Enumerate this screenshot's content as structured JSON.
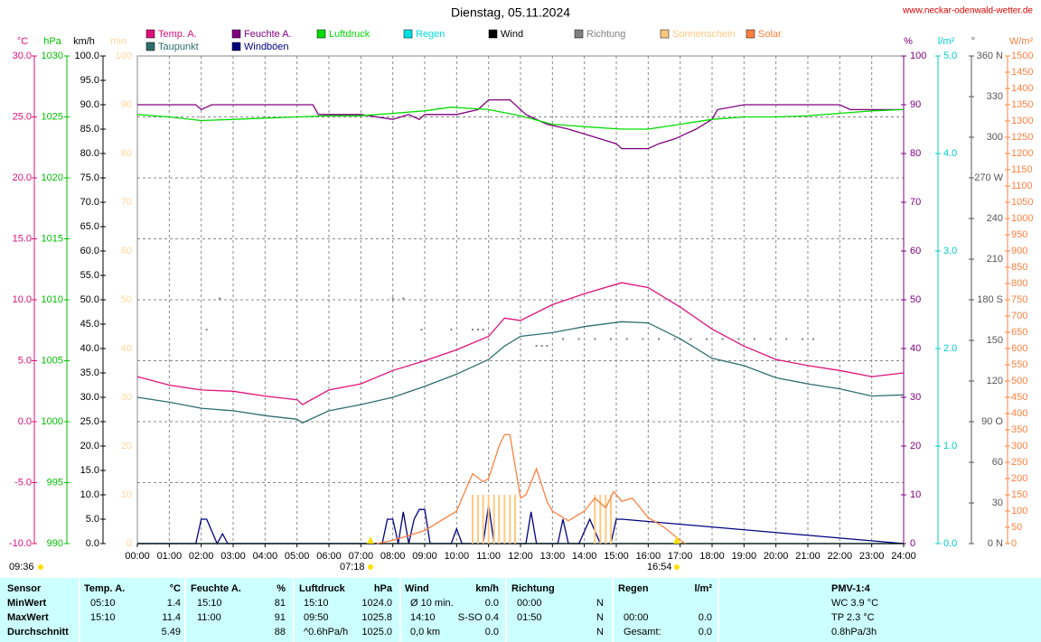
{
  "chart_data": {
    "type": "line",
    "title": "Dienstag, 05.11.2024",
    "source": "www.neckar-odenwald-wetter.de",
    "grid": true,
    "xlim": [
      0,
      24
    ],
    "xticks": [
      {
        "value": 0,
        "label": "00:00"
      },
      {
        "value": 1,
        "label": "01:00"
      },
      {
        "value": 2,
        "label": "02:00"
      },
      {
        "value": 3,
        "label": "03:00"
      },
      {
        "value": 4,
        "label": "04:00"
      },
      {
        "value": 5,
        "label": "05:00"
      },
      {
        "value": 6,
        "label": "06:00"
      },
      {
        "value": 7,
        "label": "07:00"
      },
      {
        "value": 8,
        "label": "08:00"
      },
      {
        "value": 9,
        "label": "09:00"
      },
      {
        "value": 10,
        "label": "10:00"
      },
      {
        "value": 11,
        "label": "11:00"
      },
      {
        "value": 12,
        "label": "12:00"
      },
      {
        "value": 13,
        "label": "13:00"
      },
      {
        "value": 14,
        "label": "14:00"
      },
      {
        "value": 15,
        "label": "15:00"
      },
      {
        "value": 16,
        "label": "16:00"
      },
      {
        "value": 17,
        "label": "17:00"
      },
      {
        "value": 18,
        "label": "18:00"
      },
      {
        "value": 19,
        "label": "19:00"
      },
      {
        "value": 20,
        "label": "20:00"
      },
      {
        "value": 21,
        "label": "21:00"
      },
      {
        "value": 22,
        "label": "22:00"
      },
      {
        "value": 23,
        "label": "23:00"
      },
      {
        "value": 24,
        "label": "24:00"
      }
    ],
    "sunshine": "09:36",
    "sunrise": "07:18",
    "sunset": "16:54",
    "axes": [
      {
        "label": "°C",
        "color": "#e0107a",
        "lim": [
          -10,
          30
        ],
        "ticks": [
          {
            "value": 30,
            "label": "30.0"
          },
          {
            "value": 25,
            "label": "25.0"
          },
          {
            "value": 20,
            "label": "20.0"
          },
          {
            "value": 15,
            "label": "15.0"
          },
          {
            "value": 10,
            "label": "10.0"
          },
          {
            "value": 5,
            "label": "5.0"
          },
          {
            "value": 0,
            "label": "0.0"
          },
          {
            "value": -5,
            "label": "-5.0"
          },
          {
            "value": -10,
            "label": "-10.0"
          }
        ]
      },
      {
        "label": "hPa",
        "color": "#00c000",
        "lim": [
          990,
          1030
        ],
        "ticks": [
          990,
          995,
          1000,
          1005,
          1010,
          1015,
          1020,
          1025,
          1030
        ]
      },
      {
        "label": "km/h",
        "color": "#000000",
        "lim": [
          0,
          100
        ],
        "ticks": [
          {
            "value": 0,
            "label": "0.0"
          },
          {
            "value": 5,
            "label": "5.0"
          },
          {
            "value": 10,
            "label": "10.0"
          },
          {
            "value": 15,
            "label": "15.0"
          },
          {
            "value": 20,
            "label": "20.0"
          },
          {
            "value": 25,
            "label": "25.0"
          },
          {
            "value": 30,
            "label": "30.0"
          },
          {
            "value": 35,
            "label": "35.0"
          },
          {
            "value": 40,
            "label": "40.0"
          },
          {
            "value": 45,
            "label": "45.0"
          },
          {
            "value": 50,
            "label": "50.0"
          },
          {
            "value": 55,
            "label": "55.0"
          },
          {
            "value": 60,
            "label": "60.0"
          },
          {
            "value": 65,
            "label": "65.0"
          },
          {
            "value": 70,
            "label": "70.0"
          },
          {
            "value": 75,
            "label": "75.0"
          },
          {
            "value": 80,
            "label": "80.0"
          },
          {
            "value": 85,
            "label": "85.0"
          },
          {
            "value": 90,
            "label": "90.0"
          },
          {
            "value": 95,
            "label": "95.0"
          },
          {
            "value": 100,
            "label": "100.0"
          }
        ]
      },
      {
        "label": "min",
        "color": "#ffd79a",
        "lim": [
          0,
          100
        ],
        "ticks": [
          0,
          10,
          20,
          30,
          40,
          50,
          60,
          70,
          80,
          90,
          100
        ]
      },
      {
        "label": "%",
        "color": "#800080",
        "lim": [
          0,
          100
        ],
        "ticks": [
          0,
          10,
          20,
          30,
          40,
          50,
          60,
          70,
          80,
          90,
          100
        ]
      },
      {
        "label": "l/m²",
        "color": "#00cccc",
        "lim": [
          0,
          5
        ],
        "ticks": [
          {
            "value": 0,
            "label": "0.0"
          },
          {
            "value": 1,
            "label": "1.0"
          },
          {
            "value": 2,
            "label": "2.0"
          },
          {
            "value": 3,
            "label": "3.0"
          },
          {
            "value": 4,
            "label": "4.0"
          },
          {
            "value": 5,
            "label": "5.0"
          }
        ]
      },
      {
        "label": "°",
        "color": "#555555",
        "lim": [
          0,
          360
        ],
        "ticks": [
          {
            "value": 0,
            "label": "0 N"
          },
          30,
          60,
          {
            "value": 90,
            "label": "90 O"
          },
          120,
          150,
          {
            "value": 180,
            "label": "180 S"
          },
          210,
          240,
          {
            "value": 270,
            "label": "270 W"
          },
          300,
          330,
          {
            "value": 360,
            "label": "360 N"
          }
        ]
      },
      {
        "label": "W/m²",
        "color": "#ff8040",
        "lim": [
          0,
          1500
        ],
        "ticks": [
          0,
          50,
          100,
          150,
          200,
          250,
          300,
          350,
          400,
          450,
          500,
          550,
          600,
          650,
          700,
          750,
          800,
          850,
          900,
          950,
          1000,
          1050,
          1100,
          1150,
          1200,
          1250,
          1300,
          1350,
          1400,
          1450,
          1500
        ]
      }
    ],
    "series": [
      {
        "name": "Temp. A.",
        "color": "#e0107a",
        "type": "line",
        "axis": 0,
        "x": [
          0,
          1,
          2,
          3,
          4,
          5,
          5.17,
          6,
          7,
          8,
          9,
          10,
          11,
          11.5,
          12,
          13,
          14,
          15.17,
          16,
          17,
          18,
          19,
          20,
          21,
          22,
          23,
          24
        ],
        "values": [
          3.7,
          3.0,
          2.6,
          2.5,
          2.1,
          1.8,
          1.4,
          2.6,
          3.1,
          4.2,
          5.0,
          5.9,
          7.0,
          8.5,
          8.3,
          9.6,
          10.5,
          11.4,
          11.0,
          9.4,
          7.6,
          6.2,
          5.1,
          4.6,
          4.2,
          3.7,
          4.0
        ]
      },
      {
        "name": "Taupunkt",
        "color": "#2e6e6e",
        "type": "line",
        "axis": 0,
        "x": [
          0,
          1,
          2,
          3,
          4,
          5,
          5.17,
          6,
          7,
          8,
          9,
          10,
          11,
          11.5,
          12,
          13,
          14,
          15.17,
          16,
          17,
          18,
          19,
          20,
          21,
          22,
          23,
          24
        ],
        "values": [
          2.0,
          1.6,
          1.1,
          0.9,
          0.5,
          0.2,
          -0.1,
          0.9,
          1.4,
          2.0,
          2.9,
          3.9,
          5.1,
          6.2,
          7.0,
          7.3,
          7.8,
          8.2,
          8.1,
          6.8,
          5.2,
          4.6,
          3.6,
          3.1,
          2.7,
          2.1,
          2.2
        ]
      },
      {
        "name": "Feuchte A.",
        "color": "#800080",
        "type": "line",
        "axis": 4,
        "x": [
          0,
          1.83,
          2,
          2.33,
          2.67,
          5.5,
          5.67,
          7,
          8,
          8.5,
          8.83,
          9,
          10,
          10.67,
          11,
          11.67,
          12.17,
          12.83,
          13.5,
          14,
          14.5,
          15,
          15.17,
          16,
          16.33,
          16.83,
          17.5,
          18,
          18.17,
          19,
          22,
          22.33,
          24
        ],
        "values": [
          90,
          90,
          89,
          90,
          90,
          90,
          88,
          88,
          87,
          88,
          87,
          88,
          88,
          89,
          91,
          91,
          88,
          86,
          85,
          84,
          83,
          82,
          81,
          81,
          82,
          83,
          85,
          87,
          89,
          90,
          90,
          89,
          89
        ]
      },
      {
        "name": "Windböen",
        "color": "#000080",
        "type": "line",
        "axis": 2,
        "x": [
          0,
          1.83,
          2,
          2.17,
          2.5,
          2.67,
          2.83,
          7.67,
          7.83,
          8,
          8.17,
          8.33,
          8.5,
          8.67,
          8.83,
          9,
          9.17,
          9.83,
          10,
          10.17,
          10.83,
          11,
          11.17,
          12.17,
          12.33,
          12.5,
          13.17,
          13.33,
          13.5,
          13.83,
          14.17,
          14.5,
          14.83,
          15,
          15.17,
          24
        ],
        "values": [
          0,
          0,
          5,
          5,
          0,
          2,
          0,
          0,
          5,
          5,
          0,
          6.5,
          0,
          5,
          7,
          7,
          0,
          0,
          3,
          0,
          0,
          8,
          0,
          0,
          6.5,
          0,
          0,
          5,
          0,
          0,
          5,
          0,
          0,
          5,
          5,
          0
        ]
      },
      {
        "name": "Luftdruck",
        "color": "#00dd00",
        "type": "line",
        "axis": 1,
        "x": [
          0,
          1,
          2,
          3,
          4,
          5,
          6,
          7,
          8,
          9,
          9.83,
          11,
          12,
          13,
          14,
          15.17,
          16,
          17,
          18,
          19,
          20,
          21,
          22,
          23,
          24
        ],
        "values": [
          1025.2,
          1025.0,
          1024.7,
          1024.8,
          1024.9,
          1025.0,
          1025.1,
          1025.1,
          1025.3,
          1025.5,
          1025.8,
          1025.6,
          1025.1,
          1024.4,
          1024.2,
          1024.0,
          1024.0,
          1024.4,
          1024.8,
          1025.0,
          1025.0,
          1025.1,
          1025.3,
          1025.5,
          1025.6
        ]
      },
      {
        "name": "Regen",
        "color": "#00e0e0",
        "type": "line",
        "axis": 5,
        "x": [
          0,
          24
        ],
        "values": [
          0,
          0
        ]
      },
      {
        "name": "Wind",
        "color": "#000000",
        "type": "line",
        "axis": 2,
        "x": [
          0,
          24
        ],
        "values": [
          0,
          0
        ]
      },
      {
        "name": "Richtung",
        "color": "#808080",
        "type": "scatter",
        "axis": 6,
        "x": [
          2.17,
          2.58,
          8,
          8.33,
          8.9,
          9.83,
          10.5,
          10.67,
          10.83,
          12.5,
          12.67,
          12.83,
          13.33,
          13.83,
          14.33,
          14.83,
          15.33,
          15.83,
          16.33,
          16.83,
          17.33,
          17.83,
          18.33,
          18.83,
          19.33,
          19.83,
          20.33,
          20.83,
          21.17
        ],
        "values": [
          158,
          181,
          181,
          181,
          158,
          158,
          158,
          158,
          158,
          146,
          146,
          146,
          151,
          151,
          151,
          151,
          151,
          151,
          151,
          151,
          151,
          151,
          151,
          151,
          151,
          151,
          151,
          151,
          151
        ]
      },
      {
        "name": "Sonnenschein",
        "color": "#ffc880",
        "type": "bar",
        "axis": 3,
        "x": [
          10.5,
          10.67,
          10.83,
          11,
          11.17,
          11.33,
          11.5,
          11.67,
          11.83,
          14.33,
          14.5,
          14.67,
          14.83
        ],
        "values": [
          10,
          10,
          10,
          10,
          10,
          10,
          10,
          10,
          10,
          10,
          10,
          10,
          10
        ]
      },
      {
        "name": "Solar",
        "color": "#ff8040",
        "type": "line",
        "axis": 7,
        "x": [
          7.5,
          8,
          9,
          10,
          10.5,
          10.83,
          11,
          11.33,
          11.5,
          11.67,
          12,
          12.17,
          12.5,
          12.83,
          13,
          13.5,
          14,
          14.33,
          14.67,
          14.92,
          15.17,
          15.5,
          16,
          16.5,
          17,
          17.17
        ],
        "values": [
          0,
          10,
          40,
          100,
          215,
          190,
          200,
          300,
          335,
          335,
          140,
          150,
          230,
          130,
          100,
          70,
          100,
          140,
          110,
          160,
          130,
          140,
          80,
          50,
          10,
          0
        ]
      }
    ]
  },
  "table": {
    "header": [
      "Sensor",
      "Temp. A.",
      "°C",
      "Feuchte A.",
      "%",
      "Luftdruck",
      "hPa",
      "Wind",
      "km/h",
      "Richtung",
      "Regen",
      "l/m²",
      "PMV-1:4"
    ],
    "rows": [
      [
        "MinWert",
        "05:10",
        "1.4",
        "15:10",
        "81",
        "15:10",
        "1024.0",
        "Ø 10 min.",
        "0.0",
        "00:00",
        "N",
        null,
        null,
        "WC 3.9 °C"
      ],
      [
        "MaxWert",
        "15:10",
        "11.4",
        "11:00",
        "91",
        "09:50",
        "1025.8",
        "14:10",
        "S-SO 0.4",
        "01:50",
        "N",
        "00:00",
        "0.0",
        "TP 2.3 °C"
      ],
      [
        "Durchschnitt",
        null,
        "5.49",
        null,
        "88",
        "^0.6hPa/h",
        "1025.0",
        "0,0 km",
        "0.0",
        null,
        "N",
        "Gesamt:",
        "0.0",
        "0.8hPa/3h"
      ]
    ]
  }
}
